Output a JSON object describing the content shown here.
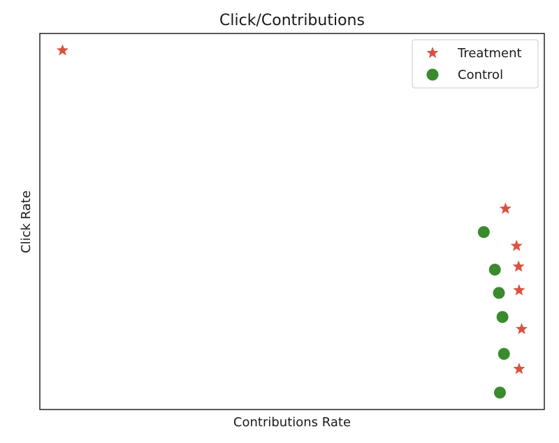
{
  "chart_data": {
    "type": "scatter",
    "title": "Click/Contributions",
    "xlabel": "Contributions Rate",
    "ylabel": "Click Rate",
    "xlim": [
      0,
      1
    ],
    "ylim": [
      0,
      1
    ],
    "grid": false,
    "legend_position": "top-right",
    "x_ticks_shown": false,
    "y_ticks_shown": false,
    "series": [
      {
        "name": "Treatment",
        "marker": "star",
        "color": "#d9523f",
        "points": [
          {
            "x": 0.045,
            "y": 0.955
          },
          {
            "x": 0.923,
            "y": 0.534
          },
          {
            "x": 0.945,
            "y": 0.435
          },
          {
            "x": 0.949,
            "y": 0.38
          },
          {
            "x": 0.95,
            "y": 0.317
          },
          {
            "x": 0.955,
            "y": 0.214
          },
          {
            "x": 0.95,
            "y": 0.108
          }
        ]
      },
      {
        "name": "Control",
        "marker": "circle",
        "color": "#3a8a2e",
        "points": [
          {
            "x": 0.88,
            "y": 0.472
          },
          {
            "x": 0.902,
            "y": 0.372
          },
          {
            "x": 0.91,
            "y": 0.31
          },
          {
            "x": 0.917,
            "y": 0.246
          },
          {
            "x": 0.92,
            "y": 0.148
          },
          {
            "x": 0.912,
            "y": 0.045
          }
        ]
      }
    ]
  }
}
